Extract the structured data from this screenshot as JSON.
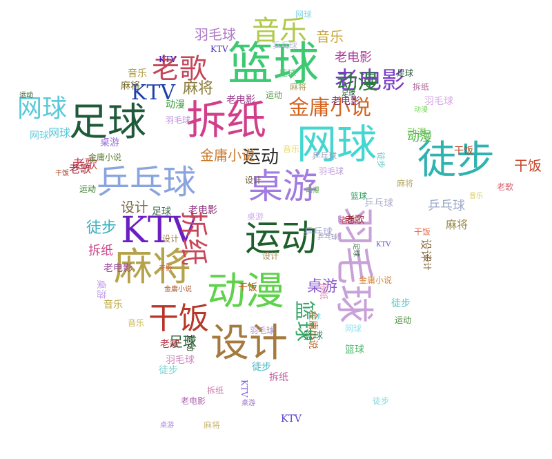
{
  "words": [
    {
      "text": "篮球",
      "color": "#3cc972"
    },
    {
      "text": "拆纸",
      "color": "#d13f8a"
    },
    {
      "text": "网球",
      "color": "#44d6d0"
    },
    {
      "text": "运动",
      "color": "#1e5e2a"
    },
    {
      "text": "桌游",
      "color": "#a27be0"
    },
    {
      "text": "乒乓球",
      "color": "#8aa4e0"
    },
    {
      "text": "足球",
      "color": "#1f5a3a"
    },
    {
      "text": "徒步",
      "color": "#2fb3b0"
    },
    {
      "text": "动漫",
      "color": "#5dd24a"
    },
    {
      "text": "麻将",
      "color": "#b5a24a"
    },
    {
      "text": "设计",
      "color": "#a57a3f"
    },
    {
      "text": "羽毛球",
      "color": "#c9a1d9"
    },
    {
      "text": "老电影",
      "color": "#7a3cc9"
    },
    {
      "text": "KTV",
      "color": "#6a1fc2"
    },
    {
      "text": "金庸小说",
      "color": "#d4641f"
    },
    {
      "text": "老歌",
      "color": "#c4475a"
    },
    {
      "text": "音乐",
      "color": "#b0c94a"
    },
    {
      "text": "干饭",
      "color": "#b8362a"
    },
    {
      "text": "动漫",
      "color": "#2a7a3a"
    },
    {
      "text": "音乐",
      "color": "#c9a83a"
    },
    {
      "text": "羽毛球",
      "color": "#b07ac9"
    },
    {
      "text": "KTV",
      "color": "#1e3fa8"
    },
    {
      "text": "网球",
      "color": "#5ac9d8"
    },
    {
      "text": "老歌",
      "color": "#c8465a"
    },
    {
      "text": "麻将",
      "color": "#8a7a3a"
    },
    {
      "text": "运动",
      "color": "#2a2a2a"
    },
    {
      "text": "设计",
      "color": "#7a6a4a"
    },
    {
      "text": "乒乓球",
      "color": "#9aa8c8"
    },
    {
      "text": "桌游",
      "color": "#8a5ad0"
    },
    {
      "text": "老电影",
      "color": "#a83a9a"
    },
    {
      "text": "拆纸",
      "color": "#c8465a"
    },
    {
      "text": "足球",
      "color": "#2a6a3a"
    },
    {
      "text": "徒步",
      "color": "#3ab0c0"
    },
    {
      "text": "干饭",
      "color": "#c8462a"
    },
    {
      "text": "动漫",
      "color": "#4ab04a"
    },
    {
      "text": "篮球",
      "color": "#3aa86a"
    },
    {
      "text": "金庸小说",
      "color": "#5a7a2a"
    },
    {
      "text": "网球",
      "color": "#58c8d8"
    },
    {
      "text": "羽毛球",
      "color": "#d08ac0"
    },
    {
      "text": "老电影",
      "color": "#9a3a8a"
    },
    {
      "text": "设计",
      "color": "#6a5a3a"
    },
    {
      "text": "运动",
      "color": "#3a7a2a"
    },
    {
      "text": "麻将",
      "color": "#9a8a4a"
    },
    {
      "text": "乒乓球",
      "color": "#a8a8d8"
    },
    {
      "text": "徒步",
      "color": "#4ab8c8"
    },
    {
      "text": "KTV",
      "color": "#4a2ab8"
    },
    {
      "text": "桌游",
      "color": "#9a6ad8"
    },
    {
      "text": "音乐",
      "color": "#b8a83a"
    },
    {
      "text": "干饭",
      "color": "#c8582a"
    },
    {
      "text": "老歌",
      "color": "#a82a3a"
    },
    {
      "text": "拆纸",
      "color": "#d04a8a"
    },
    {
      "text": "足球",
      "color": "#3a6a4a"
    },
    {
      "text": "篮球",
      "color": "#4ab86a"
    },
    {
      "text": "动漫",
      "color": "#6ac84a"
    },
    {
      "text": "网球",
      "color": "#7ad8e8"
    },
    {
      "text": "金庸小说",
      "color": "#c8782a"
    },
    {
      "text": "羽毛球",
      "color": "#b88ad8"
    },
    {
      "text": "设计",
      "color": "#8a6a3a"
    },
    {
      "text": "老电影",
      "color": "#8a2a7a"
    },
    {
      "text": "麻将",
      "color": "#7a6a2a"
    },
    {
      "text": "运动",
      "color": "#2a5a2a"
    },
    {
      "text": "乒乓球",
      "color": "#a0a0c0"
    },
    {
      "text": "桌游",
      "color": "#b08ae0"
    },
    {
      "text": "徒步",
      "color": "#58c0c0"
    },
    {
      "text": "KTV",
      "color": "#5a3ac8"
    },
    {
      "text": "音乐",
      "color": "#c8b84a"
    },
    {
      "text": "干饭",
      "color": "#b84a2a"
    },
    {
      "text": "老歌",
      "color": "#b83a4a"
    },
    {
      "text": "拆纸",
      "color": "#c05a9a"
    },
    {
      "text": "足球",
      "color": "#1a4a2a"
    },
    {
      "text": "篮球",
      "color": "#2a9a5a"
    },
    {
      "text": "动漫",
      "color": "#3a9a3a"
    },
    {
      "text": "网球",
      "color": "#6ad0e0"
    },
    {
      "text": "金庸小说",
      "color": "#b8682a"
    },
    {
      "text": "羽毛球",
      "color": "#c09ad8"
    },
    {
      "text": "设计",
      "color": "#9a7a4a"
    },
    {
      "text": "老电影",
      "color": "#9a4a9a"
    },
    {
      "text": "麻将",
      "color": "#a89a5a"
    },
    {
      "text": "运动",
      "color": "#4a8a3a"
    },
    {
      "text": "乒乓球",
      "color": "#b0b0d0"
    },
    {
      "text": "桌游",
      "color": "#c0a0e8"
    },
    {
      "text": "徒步",
      "color": "#68c8c8"
    },
    {
      "text": "KTV",
      "color": "#6a4ad8"
    },
    {
      "text": "音乐",
      "color": "#d8c85a"
    },
    {
      "text": "干饭",
      "color": "#d85a3a"
    },
    {
      "text": "老歌",
      "color": "#c84a5a"
    },
    {
      "text": "拆纸",
      "color": "#b06a9a"
    },
    {
      "text": "足球",
      "color": "#2a5a3a"
    },
    {
      "text": "篮球",
      "color": "#3a8a5a"
    },
    {
      "text": "动漫",
      "color": "#5aa84a"
    },
    {
      "text": "网球",
      "color": "#8ad8e8"
    },
    {
      "text": "金庸小说",
      "color": "#a8582a"
    },
    {
      "text": "羽毛球",
      "color": "#a88ac8"
    },
    {
      "text": "设计",
      "color": "#7a5a2a"
    },
    {
      "text": "老电影",
      "color": "#7a2a6a"
    },
    {
      "text": "麻将",
      "color": "#b8aa6a"
    },
    {
      "text": "运动",
      "color": "#1a3a1a"
    },
    {
      "text": "乒乓球",
      "color": "#9898b8"
    },
    {
      "text": "桌游",
      "color": "#9a7ac8"
    },
    {
      "text": "徒步",
      "color": "#78d0d0"
    },
    {
      "text": "KTV",
      "color": "#3a1ab8"
    },
    {
      "text": "音乐",
      "color": "#a8983a"
    },
    {
      "text": "干饭",
      "color": "#a83a1a"
    },
    {
      "text": "老歌",
      "color": "#982a3a"
    },
    {
      "text": "拆纸",
      "color": "#c87aaa"
    },
    {
      "text": "足球",
      "color": "#3a7a4a"
    },
    {
      "text": "篮球",
      "color": "#5ac87a"
    },
    {
      "text": "动漫",
      "color": "#7ad85a"
    },
    {
      "text": "网球",
      "color": "#9ae0f0"
    },
    {
      "text": "金庸小说",
      "color": "#d8883a"
    },
    {
      "text": "羽毛球",
      "color": "#d8aae8"
    },
    {
      "text": "设计",
      "color": "#aa8a5a"
    },
    {
      "text": "老电影",
      "color": "#aa5aaa"
    },
    {
      "text": "麻将",
      "color": "#c8ba7a"
    },
    {
      "text": "运动",
      "color": "#5a9a4a"
    },
    {
      "text": "乒乓球",
      "color": "#c0c0e0"
    },
    {
      "text": "桌游",
      "color": "#d0b0f0"
    },
    {
      "text": "徒步",
      "color": "#88d8d8"
    },
    {
      "text": "KTV",
      "color": "#7a5ae8"
    },
    {
      "text": "音乐",
      "color": "#e8d86a"
    },
    {
      "text": "干饭",
      "color": "#e86a4a"
    },
    {
      "text": "老歌",
      "color": "#d85a6a"
    },
    {
      "text": "拆纸",
      "color": "#e08ab8"
    }
  ]
}
